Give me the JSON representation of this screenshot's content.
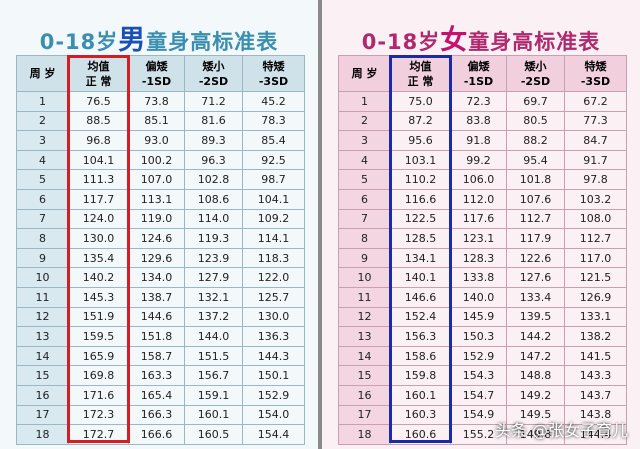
{
  "panels": [
    {
      "title": {
        "pre": "0-18岁",
        "key": "男",
        "post": "童身高标准表"
      },
      "header": [
        {
          "lines": [
            "周 岁"
          ]
        },
        {
          "lines": [
            "均值",
            "正 常"
          ]
        },
        {
          "lines": [
            "偏矮",
            "-1SD"
          ]
        },
        {
          "lines": [
            "矮小",
            "-2SD"
          ]
        },
        {
          "lines": [
            "特矮",
            "-3SD"
          ]
        }
      ],
      "rows": [
        [
          "1",
          "76.5",
          "73.8",
          "71.2",
          "45.2"
        ],
        [
          "2",
          "88.5",
          "85.1",
          "81.6",
          "78.3"
        ],
        [
          "3",
          "96.8",
          "93.0",
          "89.3",
          "85.4"
        ],
        [
          "4",
          "104.1",
          "100.2",
          "96.3",
          "92.5"
        ],
        [
          "5",
          "111.3",
          "107.0",
          "102.8",
          "98.7"
        ],
        [
          "6",
          "117.7",
          "113.1",
          "108.6",
          "104.1"
        ],
        [
          "7",
          "124.0",
          "119.0",
          "114.0",
          "109.2"
        ],
        [
          "8",
          "130.0",
          "124.6",
          "119.3",
          "114.1"
        ],
        [
          "9",
          "135.4",
          "129.6",
          "123.9",
          "118.3"
        ],
        [
          "10",
          "140.2",
          "134.0",
          "127.9",
          "122.0"
        ],
        [
          "11",
          "145.3",
          "138.7",
          "132.1",
          "125.7"
        ],
        [
          "12",
          "151.9",
          "144.6",
          "137.2",
          "130.0"
        ],
        [
          "13",
          "159.5",
          "151.8",
          "144.0",
          "136.3"
        ],
        [
          "14",
          "165.9",
          "158.7",
          "151.5",
          "144.3"
        ],
        [
          "15",
          "169.8",
          "163.3",
          "156.7",
          "150.1"
        ],
        [
          "16",
          "171.6",
          "165.4",
          "159.1",
          "152.9"
        ],
        [
          "17",
          "172.3",
          "166.3",
          "160.1",
          "154.0"
        ],
        [
          "18",
          "172.7",
          "166.6",
          "160.5",
          "154.4"
        ]
      ]
    },
    {
      "title": {
        "pre": "0-18岁",
        "key": "女",
        "post": "童身高标准表"
      },
      "header": [
        {
          "lines": [
            "周 岁"
          ]
        },
        {
          "lines": [
            "均值",
            "正 常"
          ]
        },
        {
          "lines": [
            "偏矮",
            "-1SD"
          ]
        },
        {
          "lines": [
            "矮小",
            "-2SD"
          ]
        },
        {
          "lines": [
            "特矮",
            "-3SD"
          ]
        }
      ],
      "rows": [
        [
          "1",
          "75.0",
          "72.3",
          "69.7",
          "67.2"
        ],
        [
          "2",
          "87.2",
          "83.8",
          "80.5",
          "77.3"
        ],
        [
          "3",
          "95.6",
          "91.8",
          "88.2",
          "84.7"
        ],
        [
          "4",
          "103.1",
          "99.2",
          "95.4",
          "91.7"
        ],
        [
          "5",
          "110.2",
          "106.0",
          "101.8",
          "97.8"
        ],
        [
          "6",
          "116.6",
          "112.0",
          "107.6",
          "103.2"
        ],
        [
          "7",
          "122.5",
          "117.6",
          "112.7",
          "108.0"
        ],
        [
          "8",
          "128.5",
          "123.1",
          "117.9",
          "112.7"
        ],
        [
          "9",
          "134.1",
          "128.3",
          "122.6",
          "117.0"
        ],
        [
          "10",
          "140.1",
          "133.8",
          "127.6",
          "121.5"
        ],
        [
          "11",
          "146.6",
          "140.0",
          "133.4",
          "126.9"
        ],
        [
          "12",
          "152.4",
          "145.9",
          "139.5",
          "133.1"
        ],
        [
          "13",
          "156.3",
          "150.3",
          "144.2",
          "138.2"
        ],
        [
          "14",
          "158.6",
          "152.9",
          "147.2",
          "141.5"
        ],
        [
          "15",
          "159.8",
          "154.3",
          "148.8",
          "143.3"
        ],
        [
          "16",
          "160.1",
          "154.7",
          "149.2",
          "143.7"
        ],
        [
          "17",
          "160.3",
          "154.9",
          "149.5",
          "143.8"
        ],
        [
          "18",
          "160.6",
          "155.2",
          "149.8",
          "144.4"
        ]
      ]
    }
  ],
  "watermark": "头条 @张女子育儿"
}
